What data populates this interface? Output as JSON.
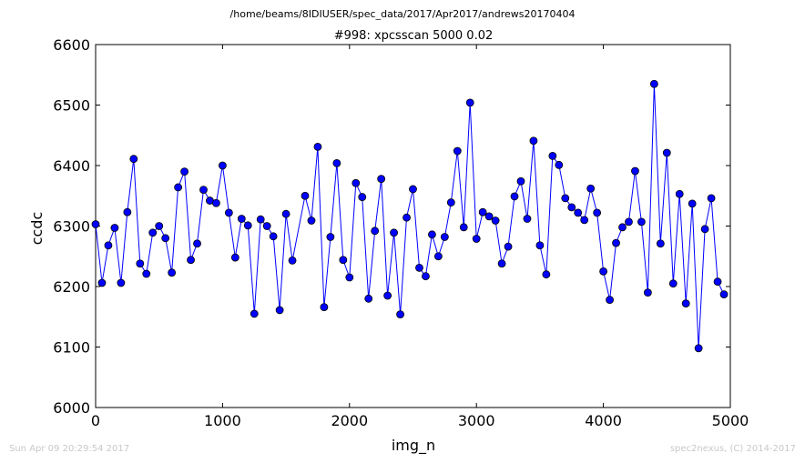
{
  "footer": {
    "timestamp": "Sun Apr 09 20:29:54 2017",
    "credit": "spec2nexus, (C) 2014-2017"
  },
  "chart_data": {
    "type": "line",
    "suptitle": "/home/beams/8IDIUSER/spec_data/2017/Apr2017/andrews20170404",
    "title": "#998: xpcsscan 5000 0.02",
    "xlabel": "img_n",
    "ylabel": "ccdc",
    "xlim": [
      0,
      5000
    ],
    "ylim": [
      6000,
      6600
    ],
    "xticks": [
      0,
      1000,
      2000,
      3000,
      4000,
      5000
    ],
    "yticks": [
      6000,
      6100,
      6200,
      6300,
      6400,
      6500,
      6600
    ],
    "grid": false,
    "line_color": "#0000ff",
    "marker": "circle",
    "x": [
      0,
      50,
      100,
      150,
      200,
      250,
      300,
      350,
      400,
      450,
      500,
      550,
      600,
      650,
      700,
      750,
      800,
      850,
      900,
      950,
      1000,
      1050,
      1100,
      1150,
      1200,
      1250,
      1300,
      1350,
      1400,
      1450,
      1500,
      1550,
      1650,
      1700,
      1750,
      1800,
      1850,
      1900,
      1950,
      2000,
      2050,
      2100,
      2150,
      2200,
      2250,
      2300,
      2350,
      2400,
      2450,
      2500,
      2550,
      2600,
      2650,
      2700,
      2750,
      2800,
      2850,
      2900,
      2950,
      3000,
      3050,
      3100,
      3150,
      3200,
      3250,
      3300,
      3350,
      3400,
      3450,
      3500,
      3550,
      3600,
      3650,
      3700,
      3750,
      3800,
      3850,
      3900,
      3950,
      4000,
      4050,
      4100,
      4150,
      4200,
      4250,
      4300,
      4350,
      4400,
      4450,
      4500,
      4550,
      4600,
      4650,
      4700,
      4750,
      4800,
      4850,
      4900,
      4950
    ],
    "y": [
      6303,
      6206,
      6268,
      6297,
      6206,
      6323,
      6411,
      6238,
      6221,
      6289,
      6300,
      6280,
      6223,
      6364,
      6390,
      6244,
      6271,
      6360,
      6342,
      6338,
      6400,
      6322,
      6248,
      6312,
      6301,
      6155,
      6311,
      6300,
      6283,
      6161,
      6320,
      6243,
      6350,
      6309,
      6431,
      6166,
      6282,
      6404,
      6244,
      6215,
      6371,
      6348,
      6180,
      6292,
      6378,
      6185,
      6289,
      6154,
      6314,
      6361,
      6231,
      6217,
      6286,
      6250,
      6282,
      6339,
      6424,
      6298,
      6504,
      6279,
      6323,
      6316,
      6309,
      6238,
      6266,
      6349,
      6374,
      6312,
      6441,
      6268,
      6220,
      6416,
      6401,
      6346,
      6331,
      6322,
      6310,
      6362,
      6322,
      6225,
      6178,
      6272,
      6298,
      6307,
      6391,
      6307,
      6190,
      6535,
      6271,
      6421,
      6205,
      6353,
      6172,
      6337,
      6098,
      6295,
      6346,
      6208,
      6187
    ]
  }
}
